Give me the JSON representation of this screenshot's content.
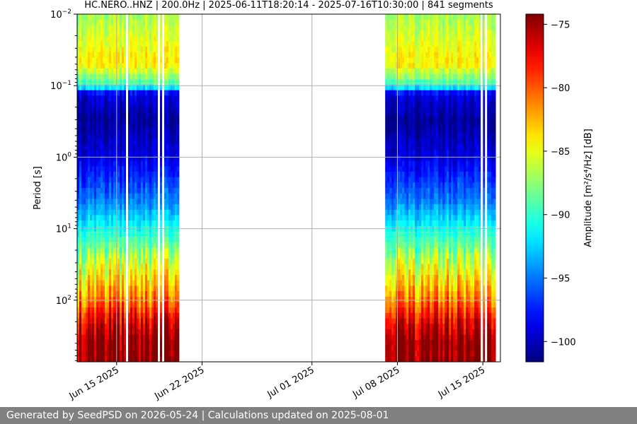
{
  "chart_data": {
    "type": "heatmap",
    "title": "HC.NERO..HNZ | 200.0Hz | 2025-06-11T18:20:14 - 2025-07-16T10:30:00 | 841 segments",
    "ylabel": "Period [s]",
    "y_scale": "log",
    "y_inverted": true,
    "y_ticks": [
      {
        "value": 0.01,
        "base": "10",
        "exp": "−2"
      },
      {
        "value": 0.1,
        "base": "10",
        "exp": "−1"
      },
      {
        "value": 1,
        "base": "10",
        "exp": "0"
      },
      {
        "value": 10,
        "base": "10",
        "exp": "1"
      },
      {
        "value": 100,
        "base": "10",
        "exp": "2"
      }
    ],
    "x_ticks": [
      "Jun 15 2025",
      "Jun 22 2025",
      "Jul 01 2025",
      "Jul 08 2025",
      "Jul 15 2025"
    ],
    "x_range": [
      "2025-06-11T18:20:14",
      "2025-07-16T10:30:00"
    ],
    "data_periods": [
      {
        "start": "2025-06-11",
        "end": "2025-06-20"
      },
      {
        "start": "2025-07-07",
        "end": "2025-07-16"
      }
    ],
    "grid": true,
    "colorbar": {
      "label": "Amplitude [m²/s⁴/Hz] [dB]",
      "ticks": [
        -75,
        -80,
        -85,
        -90,
        -95,
        -100
      ],
      "min": -101.6,
      "max": -74.2,
      "colormap": "jet"
    },
    "profile_db": [
      {
        "period": 0.01,
        "db": -87
      },
      {
        "period": 0.05,
        "db": -84
      },
      {
        "period": 0.1,
        "db": -90
      },
      {
        "period": 0.13,
        "db": -99
      },
      {
        "period": 0.3,
        "db": -101
      },
      {
        "period": 1,
        "db": -99
      },
      {
        "period": 4,
        "db": -95
      },
      {
        "period": 10,
        "db": -91
      },
      {
        "period": 30,
        "db": -86
      },
      {
        "period": 100,
        "db": -81
      },
      {
        "period": 200,
        "db": -77
      },
      {
        "period": 400,
        "db": -74.5
      }
    ]
  },
  "footer": {
    "text": "Generated by SeedPSD on 2026-05-24 | Calculations updated on 2025-08-01"
  }
}
